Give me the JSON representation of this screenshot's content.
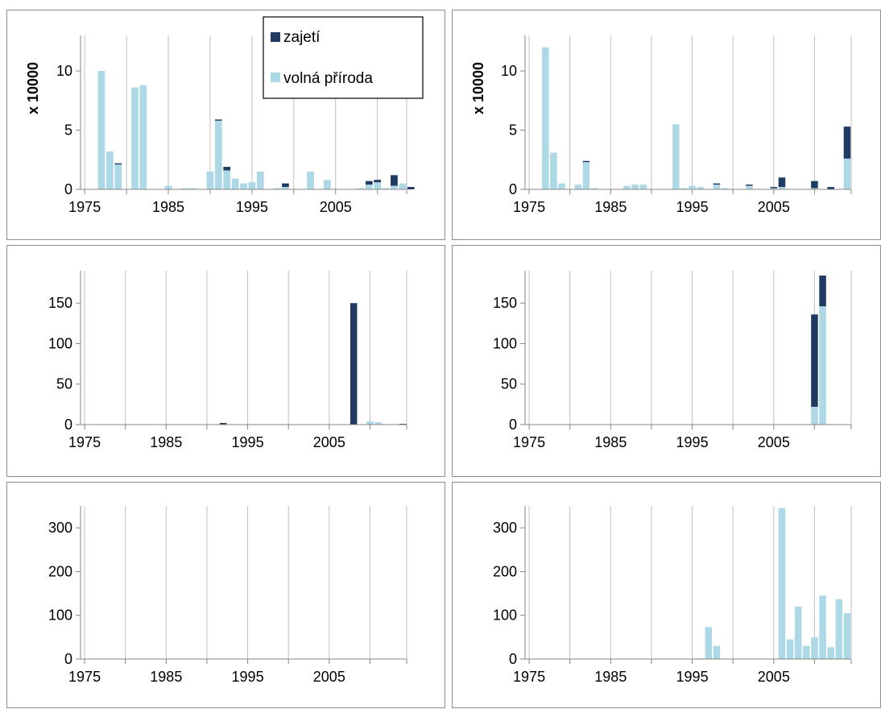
{
  "colors": {
    "captivity": "#1f3b63",
    "wild": "#add8e6",
    "grid": "#bfbfbf",
    "axis": "#868686",
    "border": "#8c8c8c"
  },
  "legend": {
    "captivity_label": "zajetí",
    "wild_label": "volná příroda"
  },
  "chart_data": [
    {
      "type": "bar",
      "stacked": true,
      "ylabel": "x 10000",
      "ylim": [
        0,
        13
      ],
      "yticks": [
        0,
        5,
        10
      ],
      "xlim": [
        1975,
        2013
      ],
      "xticks": [
        1975,
        1985,
        1995,
        2005
      ],
      "grid": true,
      "legend": "top-right",
      "series": [
        {
          "name": "volná příroda",
          "color": "#add8e6",
          "x": [
            1977,
            1978,
            1979,
            1981,
            1982,
            1985,
            1987,
            1988,
            1990,
            1991,
            1992,
            1993,
            1994,
            1995,
            1996,
            1998,
            1999,
            2002,
            2004,
            2008,
            2009,
            2010,
            2011,
            2012,
            2013
          ],
          "values": [
            10,
            3.2,
            2.1,
            8.6,
            8.8,
            0.3,
            0.1,
            0.1,
            1.5,
            5.8,
            1.6,
            0.9,
            0.5,
            0.6,
            1.5,
            0.1,
            0.2,
            1.5,
            0.8,
            0.1,
            0.4,
            0.6,
            0.1,
            0.3,
            0.5
          ]
        },
        {
          "name": "zajetí",
          "color": "#1f3b63",
          "x": [
            1979,
            1991,
            1992,
            1999,
            2009,
            2010,
            2012,
            2014
          ],
          "values": [
            0.1,
            0.1,
            0.3,
            0.3,
            0.3,
            0.2,
            0.9,
            0.2
          ]
        }
      ]
    },
    {
      "type": "bar",
      "stacked": true,
      "ylabel": "x 10000",
      "ylim": [
        0,
        13
      ],
      "yticks": [
        0,
        5,
        10
      ],
      "xlim": [
        1975,
        2014
      ],
      "xticks": [
        1975,
        1985,
        1995,
        2005
      ],
      "grid": true,
      "series": [
        {
          "name": "volná příroda",
          "color": "#add8e6",
          "x": [
            1977,
            1978,
            1979,
            1981,
            1982,
            1983,
            1987,
            1988,
            1989,
            1993,
            1994,
            1995,
            1996,
            1998,
            1999,
            2002,
            2005,
            2006,
            2010,
            2014
          ],
          "values": [
            12,
            3.1,
            0.5,
            0.4,
            2.3,
            0.1,
            0.3,
            0.4,
            0.4,
            5.5,
            0.1,
            0.3,
            0.2,
            0.4,
            0.1,
            0.3,
            0.1,
            0.2,
            0.1,
            2.6
          ]
        },
        {
          "name": "zajetí",
          "color": "#1f3b63",
          "x": [
            1982,
            1998,
            2002,
            2005,
            2006,
            2010,
            2012,
            2014
          ],
          "values": [
            0.1,
            0.1,
            0.1,
            0.1,
            0.8,
            0.6,
            0.2,
            2.7
          ]
        }
      ]
    },
    {
      "type": "bar",
      "stacked": true,
      "ylim": [
        0,
        190
      ],
      "yticks": [
        0,
        50,
        100,
        150
      ],
      "xlim": [
        1975,
        2014
      ],
      "xticks": [
        1975,
        1985,
        1995,
        2005
      ],
      "grid": true,
      "series": [
        {
          "name": "volná příroda",
          "color": "#add8e6",
          "x": [
            2010,
            2011
          ],
          "values": [
            4,
            3
          ]
        },
        {
          "name": "zajetí",
          "color": "#1f3b63",
          "x": [
            1992,
            2008,
            2014
          ],
          "values": [
            2,
            150,
            1
          ]
        }
      ]
    },
    {
      "type": "bar",
      "stacked": true,
      "ylim": [
        0,
        190
      ],
      "yticks": [
        0,
        50,
        100,
        150
      ],
      "xlim": [
        1975,
        2014
      ],
      "xticks": [
        1975,
        1985,
        1995,
        2005
      ],
      "grid": true,
      "series": [
        {
          "name": "volná příroda",
          "color": "#add8e6",
          "x": [
            2010,
            2011
          ],
          "values": [
            22,
            146
          ]
        },
        {
          "name": "zajetí",
          "color": "#1f3b63",
          "x": [
            2010,
            2011
          ],
          "values": [
            114,
            38
          ]
        }
      ]
    },
    {
      "type": "bar",
      "stacked": true,
      "ylim": [
        0,
        350
      ],
      "yticks": [
        0,
        100,
        200,
        300
      ],
      "xlim": [
        1975,
        2014
      ],
      "xticks": [
        1975,
        1985,
        1995,
        2005
      ],
      "grid": true,
      "series": []
    },
    {
      "type": "bar",
      "stacked": true,
      "ylim": [
        0,
        350
      ],
      "yticks": [
        0,
        100,
        200,
        300
      ],
      "xlim": [
        1975,
        2014
      ],
      "xticks": [
        1975,
        1985,
        1995,
        2005
      ],
      "grid": true,
      "series": [
        {
          "name": "volná příroda",
          "color": "#add8e6",
          "x": [
            1996,
            1997,
            1998,
            2006,
            2007,
            2008,
            2009,
            2010,
            2011,
            2012,
            2013,
            2014
          ],
          "values": [
            2,
            73,
            30,
            345,
            45,
            120,
            30,
            50,
            145,
            27,
            137,
            105
          ]
        }
      ]
    }
  ]
}
